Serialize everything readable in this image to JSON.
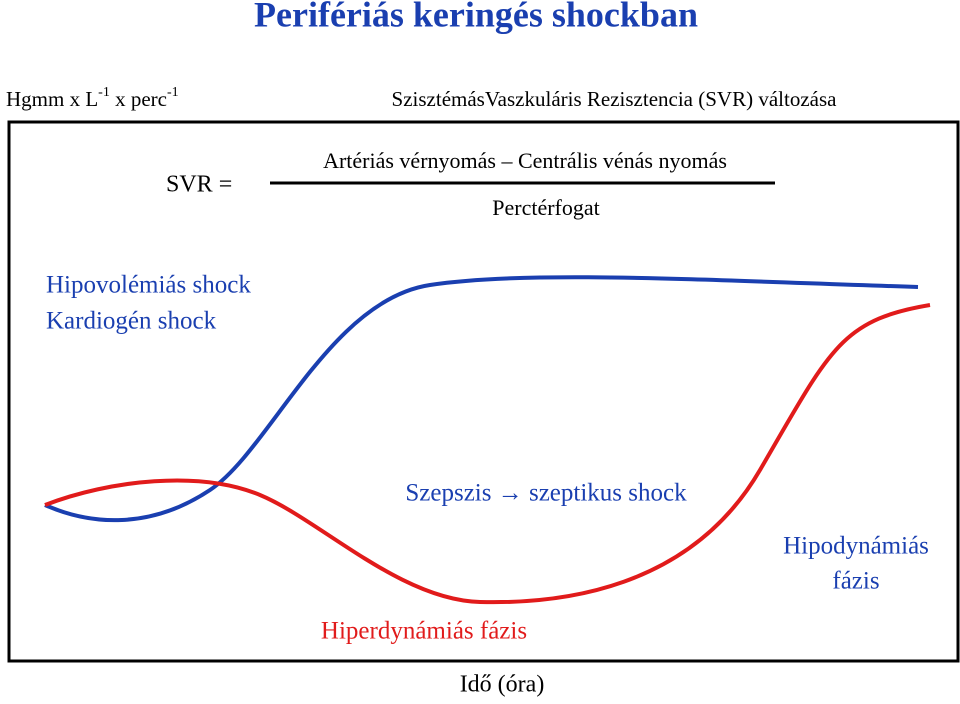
{
  "title": "Perifériás keringés shockban",
  "unit": {
    "part1": "Hgmm x L",
    "sup1": "-1",
    "part2": " x perc",
    "sup2": "-1"
  },
  "heading": "SzisztémásVaszkuláris Rezisztencia (SVR) változása",
  "formula": {
    "lhs": "SVR =",
    "numerator": "Artériás vérnyomás – Centrális vénás nyomás",
    "denominator": "Perctérfogat"
  },
  "labels": {
    "hypovolemic": "Hipovolémiás shock",
    "cardiogenic": "Kardiogén shock",
    "sepsis": "Szepszis → szeptikus shock",
    "hypodynamic": [
      "Hipodynámiás",
      "fázis"
    ],
    "hyperdynamic": "Hiperdynámiás fázis"
  },
  "x_label": "Idő (óra)"
}
